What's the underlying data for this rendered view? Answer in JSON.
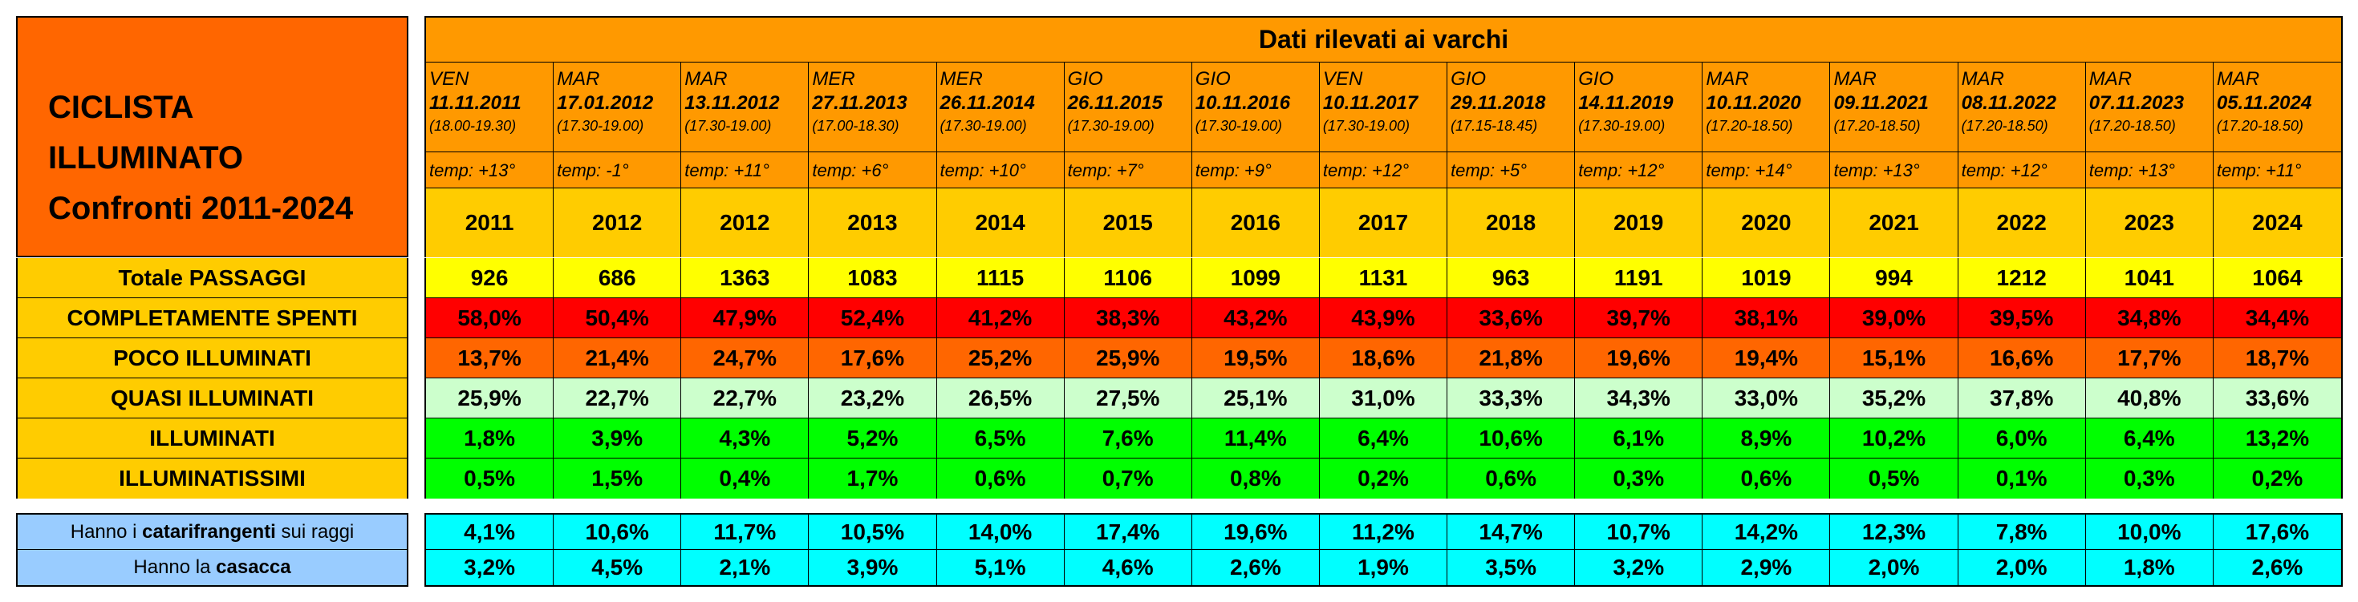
{
  "title": {
    "line1": "CICLISTA",
    "line2": "ILLUMINATO",
    "line3": "Confronti 2011-2024"
  },
  "header": {
    "title": "Dati rilevati ai varchi",
    "columns": [
      {
        "day": "VEN",
        "date": "11.11.2011",
        "time": "(18.00-19.30)",
        "temp": "temp: +13°",
        "year": "2011"
      },
      {
        "day": "MAR",
        "date": "17.01.2012",
        "time": "(17.30-19.00)",
        "temp": "temp: -1°",
        "year": "2012"
      },
      {
        "day": "MAR",
        "date": "13.11.2012",
        "time": "(17.30-19.00)",
        "temp": "temp: +11°",
        "year": "2012"
      },
      {
        "day": "MER",
        "date": "27.11.2013",
        "time": "(17.00-18.30)",
        "temp": "temp: +6°",
        "year": "2013"
      },
      {
        "day": "MER",
        "date": "26.11.2014",
        "time": "(17.30-19.00)",
        "temp": "temp: +10°",
        "year": "2014"
      },
      {
        "day": "GIO",
        "date": "26.11.2015",
        "time": "(17.30-19.00)",
        "temp": "temp: +7°",
        "year": "2015"
      },
      {
        "day": "GIO",
        "date": "10.11.2016",
        "time": "(17.30-19.00)",
        "temp": "temp: +9°",
        "year": "2016"
      },
      {
        "day": "VEN",
        "date": "10.11.2017",
        "time": "(17.30-19.00)",
        "temp": "temp: +12°",
        "year": "2017"
      },
      {
        "day": "GIO",
        "date": "29.11.2018",
        "time": "(17.15-18.45)",
        "temp": "temp: +5°",
        "year": "2018"
      },
      {
        "day": "GIO",
        "date": "14.11.2019",
        "time": "(17.30-19.00)",
        "temp": "temp: +12°",
        "year": "2019"
      },
      {
        "day": "MAR",
        "date": "10.11.2020",
        "time": "(17.20-18.50)",
        "temp": "temp: +14°",
        "year": "2020"
      },
      {
        "day": "MAR",
        "date": "09.11.2021",
        "time": "(17.20-18.50)",
        "temp": "temp: +13°",
        "year": "2021"
      },
      {
        "day": "MAR",
        "date": "08.11.2022",
        "time": "(17.20-18.50)",
        "temp": "temp: +12°",
        "year": "2022"
      },
      {
        "day": "MAR",
        "date": "07.11.2023",
        "time": "(17.20-18.50)",
        "temp": "temp: +13°",
        "year": "2023"
      },
      {
        "day": "MAR",
        "date": "05.11.2024",
        "time": "(17.20-18.50)",
        "temp": "temp: +11°",
        "year": "2024"
      }
    ]
  },
  "rows": [
    {
      "label": "Totale PASSAGGI",
      "color": "#ffff00",
      "values": [
        "926",
        "686",
        "1363",
        "1083",
        "1115",
        "1106",
        "1099",
        "1131",
        "963",
        "1191",
        "1019",
        "994",
        "1212",
        "1041",
        "1064"
      ]
    },
    {
      "label": "COMPLETAMENTE SPENTI",
      "color": "#ff0000",
      "values": [
        "58,0%",
        "50,4%",
        "47,9%",
        "52,4%",
        "41,2%",
        "38,3%",
        "43,2%",
        "43,9%",
        "33,6%",
        "39,7%",
        "38,1%",
        "39,0%",
        "39,5%",
        "34,8%",
        "34,4%"
      ]
    },
    {
      "label": "POCO ILLUMINATI",
      "color": "#ff6600",
      "values": [
        "13,7%",
        "21,4%",
        "24,7%",
        "17,6%",
        "25,2%",
        "25,9%",
        "19,5%",
        "18,6%",
        "21,8%",
        "19,6%",
        "19,4%",
        "15,1%",
        "16,6%",
        "17,7%",
        "18,7%"
      ]
    },
    {
      "label": "QUASI ILLUMINATI",
      "color": "#ccffcc",
      "values": [
        "25,9%",
        "22,7%",
        "22,7%",
        "23,2%",
        "26,5%",
        "27,5%",
        "25,1%",
        "31,0%",
        "33,3%",
        "34,3%",
        "33,0%",
        "35,2%",
        "37,8%",
        "40,8%",
        "33,6%"
      ]
    },
    {
      "label": "ILLUMINATI",
      "color": "#00ff00",
      "values": [
        "1,8%",
        "3,9%",
        "4,3%",
        "5,2%",
        "6,5%",
        "7,6%",
        "11,4%",
        "6,4%",
        "10,6%",
        "6,1%",
        "8,9%",
        "10,2%",
        "6,0%",
        "6,4%",
        "13,2%"
      ]
    },
    {
      "label": "ILLUMINATISSIMI",
      "color": "#00ff00",
      "values": [
        "0,5%",
        "1,5%",
        "0,4%",
        "1,7%",
        "0,6%",
        "0,7%",
        "0,8%",
        "0,2%",
        "0,6%",
        "0,3%",
        "0,6%",
        "0,5%",
        "0,1%",
        "0,3%",
        "0,2%"
      ]
    }
  ],
  "extra": [
    {
      "label_pre": "Hanno i ",
      "label_bold": "catarifrangenti",
      "label_post": " sui raggi",
      "values": [
        "4,1%",
        "10,6%",
        "11,7%",
        "10,5%",
        "14,0%",
        "17,4%",
        "19,6%",
        "11,2%",
        "14,7%",
        "10,7%",
        "14,2%",
        "12,3%",
        "7,8%",
        "10,0%",
        "17,6%"
      ]
    },
    {
      "label_pre": "Hanno la ",
      "label_bold": "casacca",
      "label_post": "",
      "values": [
        "3,2%",
        "4,5%",
        "2,1%",
        "3,9%",
        "5,1%",
        "4,6%",
        "2,6%",
        "1,9%",
        "3,5%",
        "3,2%",
        "2,9%",
        "2,0%",
        "2,0%",
        "1,8%",
        "2,6%"
      ]
    }
  ]
}
